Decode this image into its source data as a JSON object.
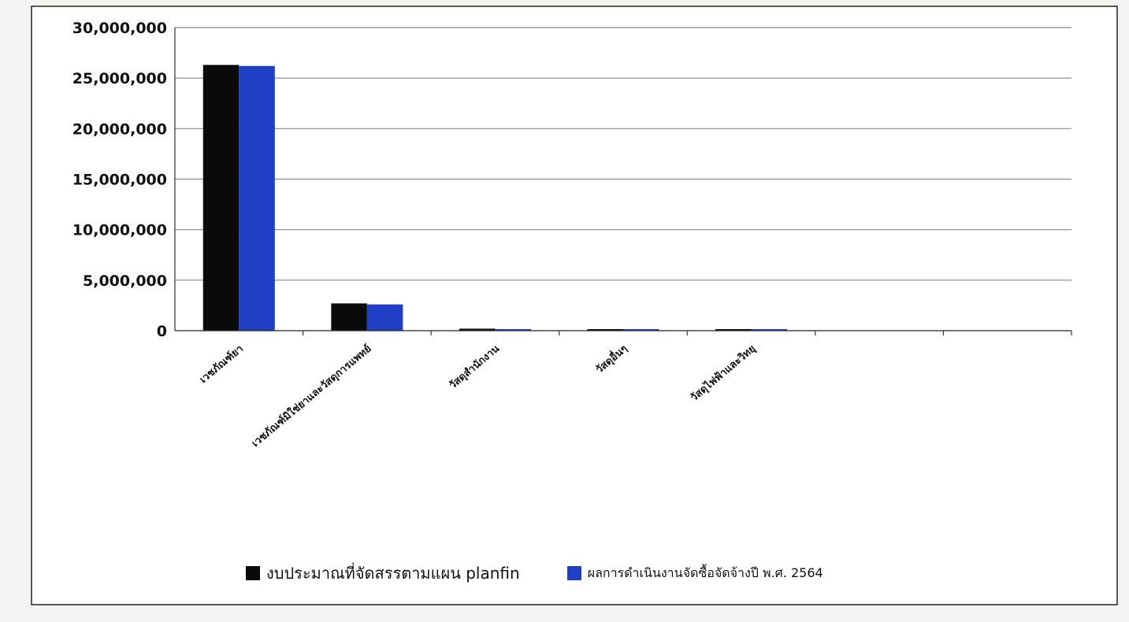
{
  "chart_data": {
    "type": "bar",
    "title": "",
    "xlabel": "",
    "ylabel": "",
    "ylim": [
      0,
      30000000
    ],
    "yticks": [
      "0",
      "5,000,000",
      "10,000,000",
      "15,000,000",
      "20,000,000",
      "25,000,000",
      "30,000,000"
    ],
    "categories": [
      "เวชภัณฑ์ยา",
      "เวชภัณฑ์มิใช่ยาและวัสดุการแพทย์",
      "วัสดุสำนักงาน",
      "วัสดุอื่นๆ",
      "วัสดุไฟฟ้าและวิทยุ",
      "",
      ""
    ],
    "series": [
      {
        "name": "งบประมาณที่จัดสรรตามแผน planfin",
        "color": "#0a0a0a",
        "values": [
          26300000,
          2700000,
          200000,
          30000,
          150000,
          null,
          null
        ]
      },
      {
        "name": "ผลการดำเนินงานจัดซื้อจัดจ้างปี พ.ศ. 2564",
        "color": "#1f3fc4",
        "values": [
          26200000,
          2600000,
          150000,
          20000,
          100000,
          null,
          null
        ]
      }
    ],
    "grid": true,
    "legend": "bottom"
  }
}
